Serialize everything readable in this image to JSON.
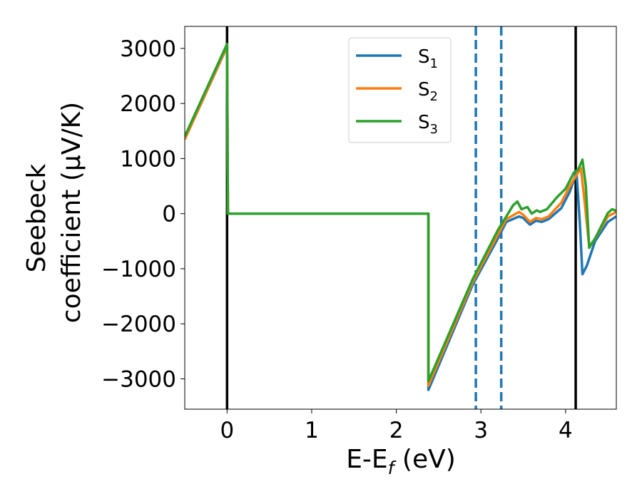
{
  "chart_data": {
    "type": "line",
    "xlabel_main": "E-E",
    "xlabel_sub": "f",
    "xlabel_unit": " (eV)",
    "ylabel_line1": "Seebeck",
    "ylabel_line2": "coefficient  (μV/K)",
    "xlim": [
      -0.5,
      4.6
    ],
    "ylim": [
      -3550,
      3400
    ],
    "x_ticks": [
      0,
      1,
      2,
      3,
      4
    ],
    "y_ticks": [
      -3000,
      -2000,
      -1000,
      0,
      1000,
      2000,
      3000
    ],
    "y_tick_labels": [
      "−3000",
      "−2000",
      "−1000",
      "0",
      "1000",
      "2000",
      "3000"
    ],
    "legend_position": "upper center",
    "vertical_lines": [
      {
        "x": 0.0,
        "style": "solid",
        "color": "#000000"
      },
      {
        "x": 4.12,
        "style": "solid",
        "color": "#000000"
      },
      {
        "x": 2.94,
        "style": "dashed",
        "color": "#1f77b4"
      },
      {
        "x": 3.24,
        "style": "dashed",
        "color": "#1f77b4"
      }
    ],
    "series": [
      {
        "name": "S",
        "subscript": "1",
        "color": "#1f77b4",
        "points": [
          [
            -0.5,
            1350
          ],
          [
            0.0,
            3030
          ],
          [
            0.01,
            0
          ],
          [
            2.38,
            0
          ],
          [
            2.38,
            -3200
          ],
          [
            2.9,
            -1300
          ],
          [
            3.2,
            -450
          ],
          [
            3.3,
            -150
          ],
          [
            3.45,
            -50
          ],
          [
            3.5,
            -80
          ],
          [
            3.58,
            -200
          ],
          [
            3.65,
            -130
          ],
          [
            3.72,
            -150
          ],
          [
            3.8,
            -100
          ],
          [
            3.95,
            100
          ],
          [
            4.05,
            400
          ],
          [
            4.13,
            750
          ],
          [
            4.17,
            -200
          ],
          [
            4.2,
            -1100
          ],
          [
            4.25,
            -950
          ],
          [
            4.35,
            -500
          ],
          [
            4.5,
            -150
          ],
          [
            4.6,
            -50
          ]
        ]
      },
      {
        "name": "S",
        "subscript": "2",
        "color": "#ff7f0e",
        "points": [
          [
            -0.5,
            1350
          ],
          [
            0.0,
            3040
          ],
          [
            0.01,
            0
          ],
          [
            2.38,
            0
          ],
          [
            2.38,
            -3120
          ],
          [
            2.9,
            -1250
          ],
          [
            3.2,
            -380
          ],
          [
            3.3,
            -100
          ],
          [
            3.45,
            30
          ],
          [
            3.5,
            -20
          ],
          [
            3.58,
            -150
          ],
          [
            3.65,
            -80
          ],
          [
            3.72,
            -100
          ],
          [
            3.8,
            -50
          ],
          [
            3.95,
            200
          ],
          [
            4.05,
            500
          ],
          [
            4.13,
            700
          ],
          [
            4.18,
            830
          ],
          [
            4.22,
            300
          ],
          [
            4.28,
            -600
          ],
          [
            4.35,
            -450
          ],
          [
            4.5,
            -50
          ],
          [
            4.6,
            30
          ]
        ]
      },
      {
        "name": "S",
        "subscript": "3",
        "color": "#2ca02c",
        "points": [
          [
            -0.5,
            1400
          ],
          [
            0.0,
            3080
          ],
          [
            0.01,
            0
          ],
          [
            2.38,
            0
          ],
          [
            2.38,
            -3040
          ],
          [
            2.9,
            -1200
          ],
          [
            3.2,
            -300
          ],
          [
            3.3,
            -50
          ],
          [
            3.38,
            150
          ],
          [
            3.43,
            220
          ],
          [
            3.48,
            80
          ],
          [
            3.55,
            120
          ],
          [
            3.6,
            0
          ],
          [
            3.66,
            60
          ],
          [
            3.7,
            30
          ],
          [
            3.78,
            80
          ],
          [
            3.9,
            300
          ],
          [
            4.0,
            450
          ],
          [
            4.1,
            750
          ],
          [
            4.15,
            800
          ],
          [
            4.2,
            980
          ],
          [
            4.24,
            500
          ],
          [
            4.28,
            -620
          ],
          [
            4.35,
            -450
          ],
          [
            4.5,
            10
          ],
          [
            4.55,
            80
          ],
          [
            4.6,
            50
          ]
        ]
      }
    ]
  }
}
